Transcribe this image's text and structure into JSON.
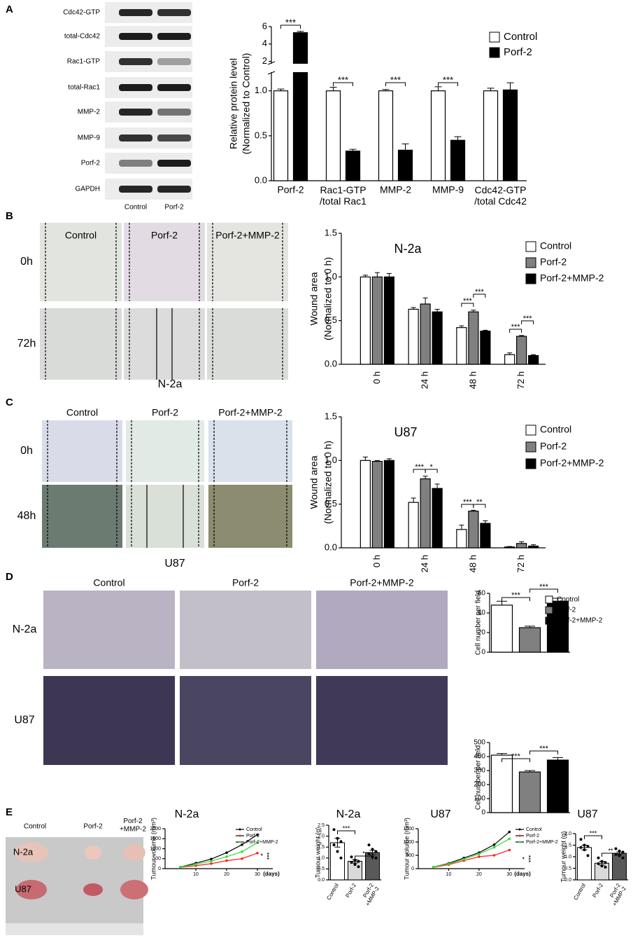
{
  "figure": {
    "panel_labels": [
      "A",
      "B",
      "C",
      "D",
      "E"
    ],
    "blot": {
      "bands": [
        "Cdc42-GTP",
        "total-Cdc42",
        "Rac1-GTP",
        "total-Rac1",
        "MMP-2",
        "MMP-9",
        "Porf-2",
        "GAPDH"
      ],
      "lanes": [
        "Control",
        "Porf-2"
      ]
    },
    "wound_n2a": {
      "columns": [
        "Control",
        "Porf-2",
        "Porf-2+MMP-2"
      ],
      "rows": [
        "0h",
        "72h"
      ],
      "caption": "N-2a"
    },
    "wound_u87": {
      "columns": [
        "Control",
        "Porf-2",
        "Porf-2+MMP-2"
      ],
      "rows": [
        "0h",
        "48h"
      ],
      "caption": "U87"
    },
    "transwell": {
      "columns": [
        "Control",
        "Porf-2",
        "Porf-2+MMP-2"
      ],
      "rows": [
        "N-2a",
        "U87"
      ]
    },
    "tumours": {
      "columns": [
        "Control",
        "Porf-2",
        "Porf-2\n+MMP-2"
      ],
      "rows": [
        "N-2a",
        "U87"
      ]
    }
  },
  "chart_data": [
    {
      "type": "bar",
      "ylabel": [
        "Relative protein level",
        "(Normalized to Control)"
      ],
      "categories": [
        "Porf-2",
        "Rac1-GTP\n/total Rac1",
        "MMP-2",
        "MMP-9",
        "Cdc42-GTP\n/total Cdc42"
      ],
      "series": [
        {
          "name": "Control",
          "color": "#ffffff",
          "values": [
            1,
            1,
            1,
            1,
            1
          ],
          "errors": [
            0.02,
            0.04,
            0.015,
            0.045,
            0.03
          ]
        },
        {
          "name": "Porf-2",
          "color": "#000000",
          "values": [
            5.3,
            0.33,
            0.34,
            0.45,
            1.01
          ],
          "errors": [
            0.15,
            0.02,
            0.07,
            0.04,
            0.08
          ]
        }
      ],
      "ylim": [
        0,
        6
      ],
      "axis_break": [
        1.2,
        1.8
      ],
      "yticks": [
        {
          "value": 0,
          "label": "0.0"
        },
        {
          "value": 0.5,
          "label": "0.5"
        },
        {
          "value": 1,
          "label": "1.0"
        },
        2,
        4,
        6
      ],
      "annotations": [
        "***",
        "***",
        "***",
        "***"
      ],
      "legend": "upper right"
    },
    {
      "type": "bar",
      "title": "N-2a",
      "ylabel": [
        "Wound area",
        "(Normalized to 0 h)"
      ],
      "categories": [
        "0 h",
        "24 h",
        "48 h",
        "72 h"
      ],
      "series": [
        {
          "name": "Control",
          "color": "#ffffff",
          "values": [
            1.0,
            0.63,
            0.42,
            0.11
          ],
          "errors": [
            0.02,
            0.02,
            0.02,
            0.02
          ]
        },
        {
          "name": "Porf-2",
          "color": "#808080",
          "values": [
            1.0,
            0.69,
            0.6,
            0.32
          ],
          "errors": [
            0.05,
            0.07,
            0.02,
            0.01
          ]
        },
        {
          "name": "Porf-2+MMP-2",
          "color": "#000000",
          "values": [
            1.0,
            0.6,
            0.38,
            0.1
          ],
          "errors": [
            0.04,
            0.03,
            0.01,
            0.01
          ]
        }
      ],
      "ylim": [
        0,
        1.5
      ],
      "yticks": [
        {
          "value": 0,
          "label": "0.0"
        },
        {
          "value": 0.5,
          "label": "0.5"
        },
        {
          "value": 1,
          "label": "1.0"
        },
        {
          "value": 1.5,
          "label": "1.5"
        }
      ],
      "annotations": [
        "***",
        "***",
        "***",
        "***"
      ],
      "legend": "upper right"
    },
    {
      "type": "bar",
      "title": "U87",
      "ylabel": [
        "Wound area",
        "(Normalized to 0 h)"
      ],
      "categories": [
        "0 h",
        "24 h",
        "48 h",
        "72 h"
      ],
      "series": [
        {
          "name": "Control",
          "color": "#ffffff",
          "values": [
            1.0,
            0.52,
            0.21,
            0.01
          ],
          "errors": [
            0.04,
            0.05,
            0.05,
            0.005
          ]
        },
        {
          "name": "Porf-2",
          "color": "#808080",
          "values": [
            0.99,
            0.79,
            0.42,
            0.05
          ],
          "errors": [
            0.01,
            0.03,
            0.01,
            0.02
          ]
        },
        {
          "name": "Porf-2+MMP-2",
          "color": "#000000",
          "values": [
            1.0,
            0.68,
            0.28,
            0.02
          ],
          "errors": [
            0.02,
            0.05,
            0.03,
            0.015
          ]
        }
      ],
      "ylim": [
        0,
        1.5
      ],
      "yticks": [
        {
          "value": 0,
          "label": "0.0"
        },
        {
          "value": 0.5,
          "label": "0.5"
        },
        {
          "value": 1,
          "label": "1.0"
        },
        {
          "value": 1.5,
          "label": "1.5"
        }
      ],
      "annotations": [
        "***",
        "*",
        "***",
        "**"
      ],
      "legend": "upper right"
    },
    {
      "type": "bar",
      "ylabel": [
        "Cell number per field"
      ],
      "series": [
        {
          "name": "Control",
          "color": "#ffffff",
          "values": [
            48
          ],
          "errors": [
            4
          ]
        },
        {
          "name": "Porf-2",
          "color": "#808080",
          "values": [
            25
          ],
          "errors": [
            1.5
          ]
        },
        {
          "name": "Porf-2+MMP-2",
          "color": "#000000",
          "values": [
            52
          ],
          "errors": [
            3
          ]
        }
      ],
      "ylim": [
        0,
        60
      ],
      "yticks": [
        0,
        20,
        40,
        60
      ],
      "annotations": [
        "***",
        "***"
      ],
      "legend": "upper right"
    },
    {
      "type": "bar",
      "ylabel": [
        "Cell number per field"
      ],
      "series": [
        {
          "color": "#ffffff",
          "values": [
            410
          ],
          "errors": [
            12
          ]
        },
        {
          "color": "#808080",
          "values": [
            290
          ],
          "errors": [
            10
          ]
        },
        {
          "color": "#000000",
          "values": [
            375
          ],
          "errors": [
            18
          ]
        }
      ],
      "ylim": [
        0,
        500
      ],
      "yticks": [
        0,
        100,
        200,
        300,
        400,
        500
      ],
      "annotations": [
        "***",
        "***"
      ]
    },
    {
      "type": "line",
      "title": "N-2a",
      "ylabel": "Tumour volume (mm³)",
      "xlabel": "(days)",
      "x": [
        5,
        10,
        15,
        20,
        25,
        30
      ],
      "series": [
        {
          "name": "Control",
          "color": "#000000",
          "values": [
            80,
            280,
            480,
            800,
            1200,
            1700
          ]
        },
        {
          "name": "Porf-2",
          "color": "#ff2020",
          "values": [
            70,
            150,
            250,
            400,
            500,
            780
          ]
        },
        {
          "name": "Porf-2+MMP-2",
          "color": "#33dd33",
          "values": [
            80,
            220,
            380,
            600,
            850,
            1300
          ]
        }
      ],
      "xlim": [
        0,
        35
      ],
      "xticks": [
        10,
        20,
        30
      ],
      "ylim": [
        0,
        2000
      ],
      "yticks": [
        0,
        500,
        1000,
        1500,
        2000
      ],
      "annotations": [
        "*",
        "***"
      ]
    },
    {
      "type": "dot-bar",
      "title": "N-2a",
      "ylabel": "Tumour weight (g)",
      "categories": [
        "Control",
        "Porf-2",
        "Porf-2\n+MMP-2"
      ],
      "values": [
        1.7,
        0.85,
        1.25
      ],
      "errors": [
        0.2,
        0.08,
        0.1
      ],
      "colors": [
        "#ffffff",
        "#d9d9d9",
        "#595959"
      ],
      "points": [
        [
          2.3,
          1.9,
          1.75,
          1.6,
          1.3,
          1.0
        ],
        [
          1.05,
          0.9,
          0.85,
          0.8,
          0.7,
          0.6
        ],
        [
          1.6,
          1.4,
          1.3,
          1.2,
          1.05,
          1.0
        ]
      ],
      "ylim": [
        0,
        2.5
      ],
      "yticks": [
        {
          "value": 0,
          "label": "0.0"
        },
        {
          "value": 0.5,
          "label": "0.5"
        },
        {
          "value": 1,
          "label": "1.0"
        },
        {
          "value": 1.5,
          "label": "1.5"
        },
        {
          "value": 2,
          "label": "2.0"
        },
        {
          "value": 2.5,
          "label": "2.5"
        }
      ],
      "annotations": [
        "***",
        "*"
      ]
    },
    {
      "type": "line",
      "title": "U87",
      "ylabel": "Tumour volume (mm³)",
      "xlabel": "(days)",
      "x": [
        5,
        10,
        15,
        20,
        25,
        30
      ],
      "series": [
        {
          "name": "Control",
          "color": "#000000",
          "values": [
            60,
            200,
            400,
            600,
            900,
            1380
          ]
        },
        {
          "name": "Porf-2",
          "color": "#ff2020",
          "values": [
            50,
            150,
            300,
            450,
            500,
            700
          ]
        },
        {
          "name": "Porf-2+MMP-2",
          "color": "#33dd33",
          "values": [
            60,
            180,
            350,
            550,
            800,
            1120
          ]
        }
      ],
      "xlim": [
        0,
        35
      ],
      "xticks": [
        10,
        20,
        30
      ],
      "ylim": [
        0,
        1500
      ],
      "yticks": [
        0,
        500,
        1000,
        1500
      ],
      "annotations": [
        "*",
        "***"
      ]
    },
    {
      "type": "dot-bar",
      "title": "U87",
      "ylabel": "Tumour weight (g)",
      "categories": [
        "Control",
        "Porf-2",
        "Porf-2\n+MMP-2"
      ],
      "values": [
        1.4,
        0.72,
        1.15
      ],
      "errors": [
        0.1,
        0.08,
        0.06
      ],
      "colors": [
        "#ffffff",
        "#d9d9d9",
        "#595959"
      ],
      "points": [
        [
          1.75,
          1.5,
          1.45,
          1.4,
          1.3,
          1.05
        ],
        [
          0.95,
          0.8,
          0.75,
          0.7,
          0.6,
          0.55
        ],
        [
          1.35,
          1.25,
          1.2,
          1.1,
          1.05,
          0.95
        ]
      ],
      "ylim": [
        0,
        2
      ],
      "yticks": [
        {
          "value": 0,
          "label": "0.0"
        },
        {
          "value": 0.5,
          "label": "0.5"
        },
        {
          "value": 1,
          "label": "1.0"
        },
        {
          "value": 1.5,
          "label": "1.5"
        },
        {
          "value": 2,
          "label": "2.0"
        }
      ],
      "annotations": [
        "***",
        "**"
      ]
    }
  ]
}
